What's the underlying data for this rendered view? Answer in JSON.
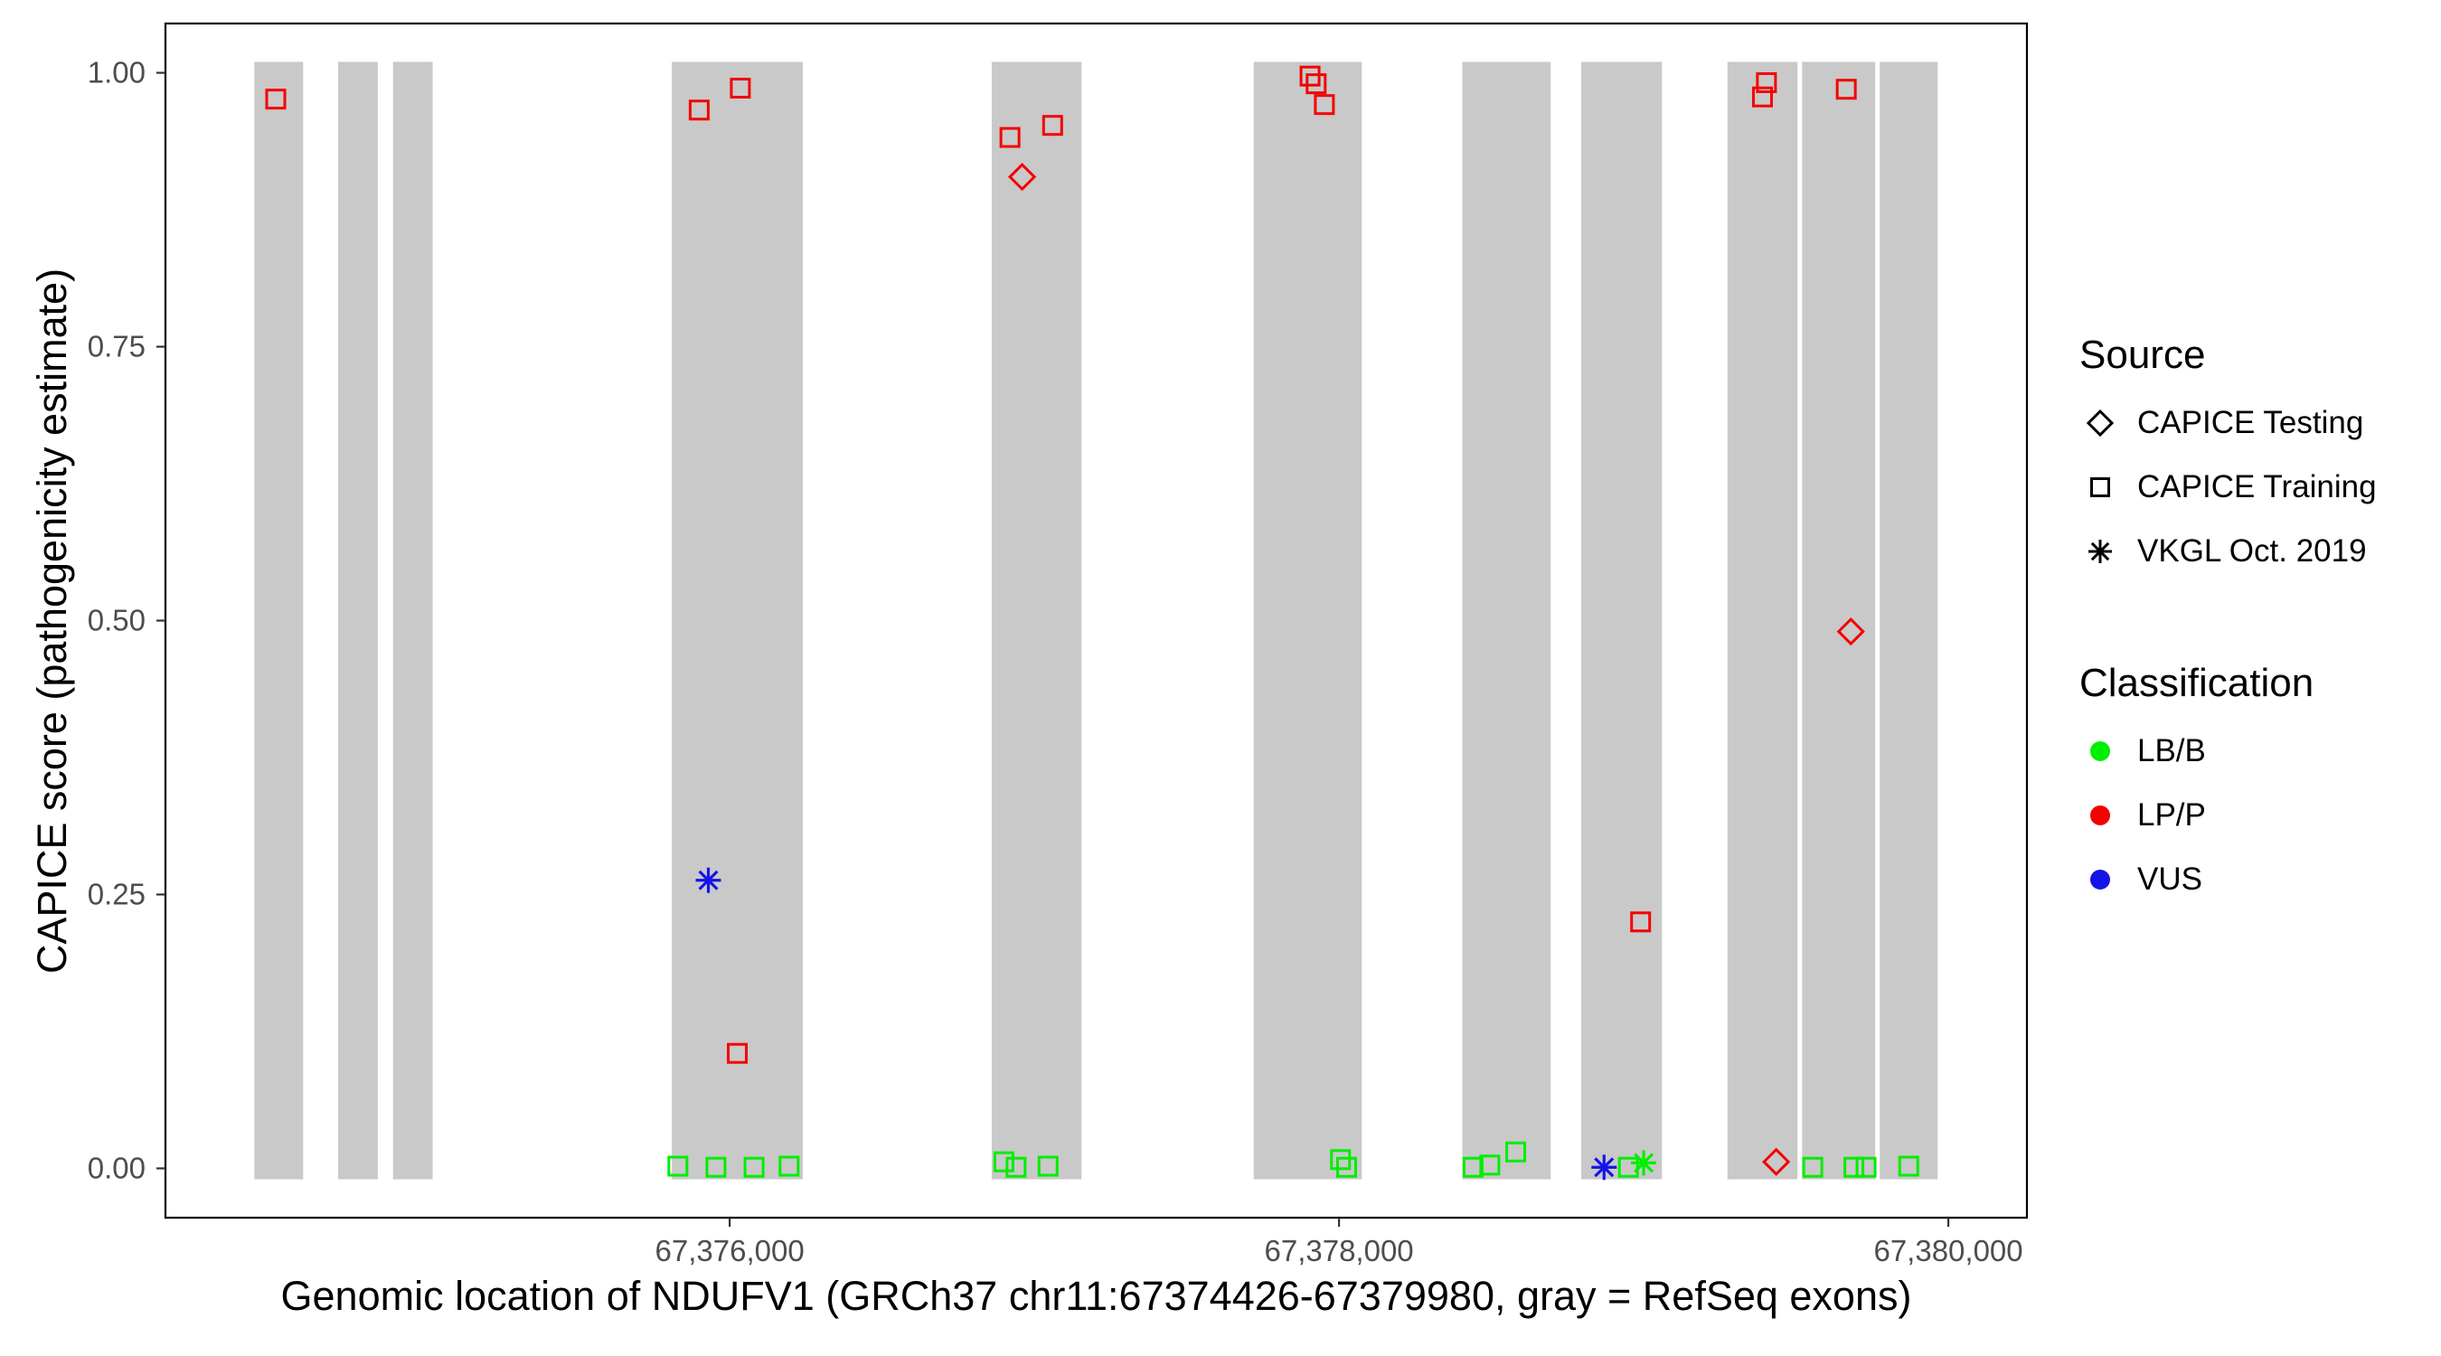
{
  "chart_data": {
    "type": "scatter",
    "title": "",
    "xlabel": "Genomic location of NDUFV1 (GRCh37 chr11:67374426-67379980, gray = RefSeq exons)",
    "ylabel": "CAPICE score (pathogenicity estimate)",
    "x_domain": [
      67374148,
      67380258
    ],
    "y_domain": [
      -0.045,
      1.045
    ],
    "grid": "off",
    "x_ticks": [
      {
        "value": 67376000,
        "label": "67,376,000"
      },
      {
        "value": 67378000,
        "label": "67,378,000"
      },
      {
        "value": 67380000,
        "label": "67,380,000"
      }
    ],
    "y_ticks": [
      {
        "value": 0.0,
        "label": "0.00"
      },
      {
        "value": 0.25,
        "label": "0.25"
      },
      {
        "value": 0.5,
        "label": "0.50"
      },
      {
        "value": 0.75,
        "label": "0.75"
      },
      {
        "value": 1.0,
        "label": "1.00"
      }
    ],
    "exon_color": "#C9C9C9",
    "exon_y_range": [
      -0.01,
      1.01
    ],
    "exons": [
      [
        67374440,
        67374600
      ],
      [
        67374715,
        67374845
      ],
      [
        67374895,
        67375025
      ],
      [
        67375810,
        67376240
      ],
      [
        67376860,
        67377155
      ],
      [
        67377720,
        67378075
      ],
      [
        67378405,
        67378695
      ],
      [
        67378795,
        67379060
      ],
      [
        67379275,
        67379505
      ],
      [
        67379520,
        67379760
      ],
      [
        67379775,
        67379965
      ]
    ],
    "classification_colors": {
      "LB/B": "#00EE00",
      "LP/P": "#F50000",
      "VUS": "#1414E8"
    },
    "source_shapes": {
      "CAPICE Testing": "diamond",
      "CAPICE Training": "square",
      "VKGL Oct. 2019": "asterisk"
    },
    "points": [
      {
        "pos": 67374510,
        "score": 0.976,
        "source": "CAPICE Training",
        "cls": "LP/P"
      },
      {
        "pos": 67375900,
        "score": 0.966,
        "source": "CAPICE Training",
        "cls": "LP/P"
      },
      {
        "pos": 67376035,
        "score": 0.986,
        "source": "CAPICE Training",
        "cls": "LP/P"
      },
      {
        "pos": 67376025,
        "score": 0.105,
        "source": "CAPICE Training",
        "cls": "LP/P"
      },
      {
        "pos": 67375930,
        "score": 0.263,
        "source": "VKGL Oct. 2019",
        "cls": "VUS"
      },
      {
        "pos": 67375830,
        "score": 0.002,
        "source": "CAPICE Training",
        "cls": "LB/B"
      },
      {
        "pos": 67375955,
        "score": 0.001,
        "source": "CAPICE Training",
        "cls": "LB/B"
      },
      {
        "pos": 67376080,
        "score": 0.001,
        "source": "CAPICE Training",
        "cls": "LB/B"
      },
      {
        "pos": 67376195,
        "score": 0.002,
        "source": "CAPICE Training",
        "cls": "LB/B"
      },
      {
        "pos": 67376920,
        "score": 0.941,
        "source": "CAPICE Training",
        "cls": "LP/P"
      },
      {
        "pos": 67377060,
        "score": 0.952,
        "source": "CAPICE Training",
        "cls": "LP/P"
      },
      {
        "pos": 67376960,
        "score": 0.905,
        "source": "CAPICE Testing",
        "cls": "LP/P"
      },
      {
        "pos": 67376900,
        "score": 0.006,
        "source": "CAPICE Training",
        "cls": "LB/B"
      },
      {
        "pos": 67376940,
        "score": 0.001,
        "source": "CAPICE Training",
        "cls": "LB/B"
      },
      {
        "pos": 67377045,
        "score": 0.002,
        "source": "CAPICE Training",
        "cls": "LB/B"
      },
      {
        "pos": 67377905,
        "score": 0.997,
        "source": "CAPICE Training",
        "cls": "LP/P"
      },
      {
        "pos": 67377925,
        "score": 0.99,
        "source": "CAPICE Training",
        "cls": "LP/P"
      },
      {
        "pos": 67377952,
        "score": 0.971,
        "source": "CAPICE Training",
        "cls": "LP/P"
      },
      {
        "pos": 67378005,
        "score": 0.008,
        "source": "CAPICE Training",
        "cls": "LB/B"
      },
      {
        "pos": 67378025,
        "score": 0.001,
        "source": "CAPICE Training",
        "cls": "LB/B"
      },
      {
        "pos": 67378440,
        "score": 0.001,
        "source": "CAPICE Training",
        "cls": "LB/B"
      },
      {
        "pos": 67378495,
        "score": 0.003,
        "source": "CAPICE Training",
        "cls": "LB/B"
      },
      {
        "pos": 67378580,
        "score": 0.015,
        "source": "CAPICE Training",
        "cls": "LB/B"
      },
      {
        "pos": 67378870,
        "score": 0.001,
        "source": "VKGL Oct. 2019",
        "cls": "VUS"
      },
      {
        "pos": 67378950,
        "score": 0.001,
        "source": "CAPICE Training",
        "cls": "LB/B"
      },
      {
        "pos": 67379000,
        "score": 0.005,
        "source": "VKGL Oct. 2019",
        "cls": "LB/B"
      },
      {
        "pos": 67378990,
        "score": 0.225,
        "source": "CAPICE Training",
        "cls": "LP/P"
      },
      {
        "pos": 67379390,
        "score": 0.978,
        "source": "CAPICE Training",
        "cls": "LP/P"
      },
      {
        "pos": 67379403,
        "score": 0.991,
        "source": "CAPICE Training",
        "cls": "LP/P"
      },
      {
        "pos": 67379665,
        "score": 0.985,
        "source": "CAPICE Training",
        "cls": "LP/P"
      },
      {
        "pos": 67379680,
        "score": 0.49,
        "source": "CAPICE Testing",
        "cls": "LP/P"
      },
      {
        "pos": 67379435,
        "score": 0.006,
        "source": "CAPICE Testing",
        "cls": "LP/P"
      },
      {
        "pos": 67379555,
        "score": 0.001,
        "source": "CAPICE Training",
        "cls": "LB/B"
      },
      {
        "pos": 67379690,
        "score": 0.001,
        "source": "CAPICE Training",
        "cls": "LB/B"
      },
      {
        "pos": 67379730,
        "score": 0.001,
        "source": "CAPICE Training",
        "cls": "LB/B"
      },
      {
        "pos": 67379870,
        "score": 0.002,
        "source": "CAPICE Training",
        "cls": "LB/B"
      }
    ]
  },
  "legend": {
    "source": {
      "title": "Source",
      "items": [
        {
          "label": "CAPICE Testing",
          "shape": "diamond"
        },
        {
          "label": "CAPICE Training",
          "shape": "square"
        },
        {
          "label": "VKGL Oct. 2019",
          "shape": "asterisk"
        }
      ]
    },
    "classification": {
      "title": "Classification",
      "items": [
        {
          "label": "LB/B",
          "color": "#00EE00"
        },
        {
          "label": "LP/P",
          "color": "#F50000"
        },
        {
          "label": "VUS",
          "color": "#1414E8"
        }
      ]
    }
  }
}
